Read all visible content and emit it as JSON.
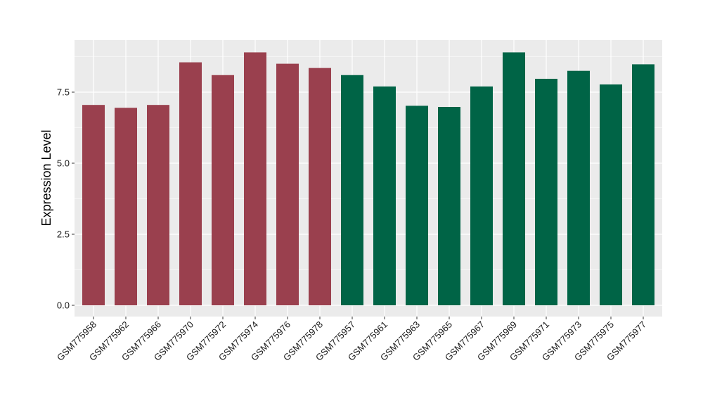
{
  "chart_data": {
    "type": "bar",
    "title": "",
    "xlabel": "",
    "ylabel": "Expression Level",
    "ylim": [
      0,
      9.2
    ],
    "yticks": [
      0.0,
      2.5,
      5.0,
      7.5
    ],
    "ytick_labels": [
      "0.0",
      "2.5",
      "5.0",
      "7.5"
    ],
    "grid": true,
    "legend": "none",
    "panel_background": "#ebebeb",
    "grid_color": "#ffffff",
    "categories": [
      "GSM775958",
      "GSM775962",
      "GSM775966",
      "GSM775970",
      "GSM775972",
      "GSM775974",
      "GSM775976",
      "GSM775978",
      "GSM775957",
      "GSM775961",
      "GSM775963",
      "GSM775965",
      "GSM775967",
      "GSM775969",
      "GSM775971",
      "GSM775973",
      "GSM775975",
      "GSM775977"
    ],
    "values": [
      7.05,
      6.95,
      7.05,
      8.55,
      8.1,
      8.9,
      8.5,
      8.35,
      8.1,
      7.7,
      7.02,
      6.98,
      7.7,
      8.9,
      7.97,
      8.25,
      7.77,
      8.48
    ],
    "group_colors": [
      "#9a404e",
      "#006446"
    ],
    "bar_group": [
      0,
      0,
      0,
      0,
      0,
      0,
      0,
      0,
      1,
      1,
      1,
      1,
      1,
      1,
      1,
      1,
      1,
      1
    ]
  }
}
